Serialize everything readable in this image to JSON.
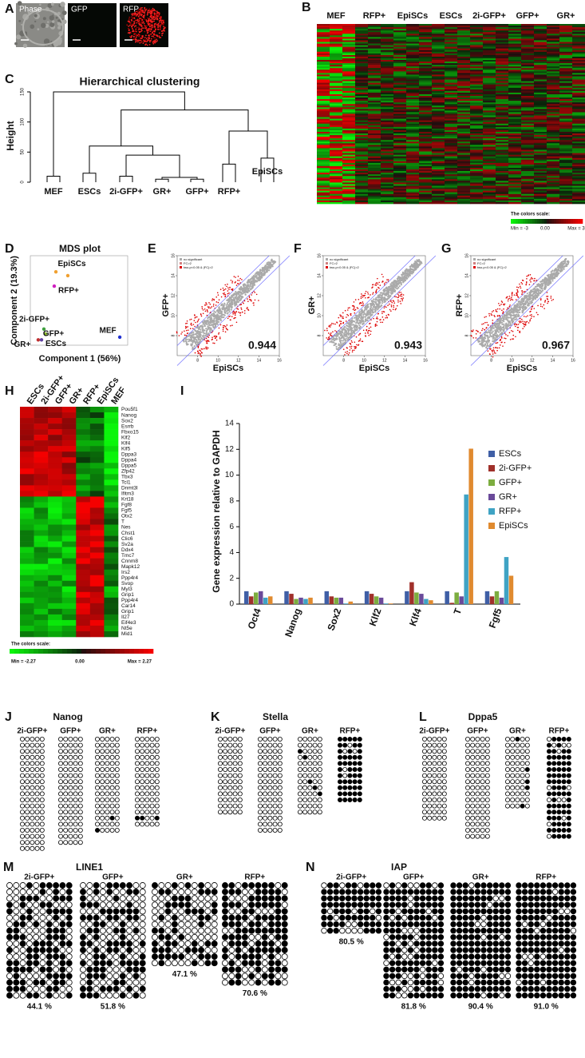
{
  "chart_data": [
    {
      "type": "image",
      "panel": "A",
      "labels": [
        "Phase",
        "GFP",
        "RFP"
      ]
    },
    {
      "type": "heatmap",
      "panel": "B",
      "categories": [
        "MEF",
        "RFP+",
        "EpiSCs",
        "ESCs",
        "2i-GFP+",
        "GFP+",
        "GR+"
      ],
      "scale_title": "The colors scale:",
      "scale_labels": [
        "Min = -3",
        "0.00",
        "Max = 3"
      ]
    },
    {
      "type": "dendrogram",
      "panel": "C",
      "title": "Hierarchical clustering",
      "ylabel": "Height",
      "ylim": [
        0,
        150
      ],
      "yticks": [
        0,
        50,
        100,
        150
      ],
      "leaves": [
        "MEF",
        "ESCs",
        "2i-GFP+",
        "GR+",
        "GFP+",
        "RFP+",
        "EpiSCs"
      ],
      "leaf_heights": [
        10,
        15,
        10,
        5,
        5,
        30,
        40
      ],
      "merges": [
        {
          "children": [
            3,
            4
          ],
          "height": 8
        },
        {
          "children": [
            2,
            7
          ],
          "height": 45
        },
        {
          "children": [
            1,
            8
          ],
          "height": 60
        },
        {
          "children": [
            5,
            6
          ],
          "height": 85
        },
        {
          "children": [
            9,
            10
          ],
          "height": 120
        },
        {
          "children": [
            0,
            11
          ],
          "height": 150
        }
      ]
    },
    {
      "type": "scatter",
      "panel": "D",
      "title": "MDS plot",
      "xlabel": "Component 1 (56%)",
      "ylabel": "Component 2 (19.3%)",
      "xlim": [
        -40,
        120
      ],
      "ylim": [
        -40,
        60
      ],
      "series": [
        {
          "name": "EpiSCs",
          "color": "#f0a030",
          "x": [
            2,
            21.6
          ],
          "values": [
            42,
            37.7
          ]
        },
        {
          "name": "RFP+",
          "color": "#d020c0",
          "x": [
            -0.7
          ],
          "values": [
            26
          ]
        },
        {
          "name": "2i-GFP+",
          "color": "#40a040",
          "x": [
            -17.7
          ],
          "values": [
            -22
          ]
        },
        {
          "name": "GFP+",
          "color": "#90c030",
          "x": [
            -15
          ],
          "values": [
            -27.5
          ]
        },
        {
          "name": "GR+",
          "color": "#c03030",
          "x": [
            -27
          ],
          "values": [
            -34
          ]
        },
        {
          "name": "ESCs",
          "color": "#6040a0",
          "x": [
            -21.6
          ],
          "values": [
            -34
          ]
        },
        {
          "name": "MEF",
          "color": "#2030d0",
          "x": [
            107
          ],
          "values": [
            -31
          ]
        }
      ]
    },
    {
      "type": "correlation",
      "panel": "E",
      "xlabel": "EpiSCs",
      "ylabel": "GFP+",
      "annotation": 0.944,
      "legend": [
        "no significant",
        "FC>2",
        "two-p<0.05 & |FC|>2"
      ],
      "xlim": [
        6,
        16
      ],
      "ylim": [
        6,
        16
      ],
      "xticks": [
        8,
        10,
        12,
        14,
        16
      ],
      "yticks": [
        8,
        10,
        12,
        14,
        16
      ]
    },
    {
      "type": "correlation",
      "panel": "F",
      "xlabel": "EpiSCs",
      "ylabel": "GR+",
      "annotation": 0.943,
      "legend": [
        "no significant",
        "FC>2",
        "two-p<0.05 & |FC|>2"
      ],
      "xlim": [
        6,
        16
      ],
      "ylim": [
        6,
        16
      ],
      "xticks": [
        8,
        10,
        12,
        14,
        16
      ],
      "yticks": [
        8,
        10,
        12,
        14,
        16
      ]
    },
    {
      "type": "correlation",
      "panel": "G",
      "xlabel": "EpiSCs",
      "ylabel": "RFP+",
      "annotation": 0.967,
      "legend": [
        "no significant",
        "FC>2",
        "two-p<0.05 & |FC|>2"
      ],
      "xlim": [
        6,
        16
      ],
      "ylim": [
        6,
        16
      ],
      "xticks": [
        8,
        10,
        12,
        14,
        16
      ],
      "yticks": [
        8,
        10,
        12,
        14,
        16
      ]
    },
    {
      "type": "heatmap",
      "panel": "H",
      "categories": [
        "ESCs",
        "2i-GFP+",
        "GFP+",
        "GR+",
        "RFP+",
        "EpiSCs",
        "MEF"
      ],
      "rows": [
        "Pou5f1",
        "Nanog",
        "Sox2",
        "Esrrb",
        "Fbxo15",
        "Klf2",
        "Klf4",
        "Klf5",
        "Dppa3",
        "Dppa4",
        "Dppa5",
        "Zfp42",
        "Tbx3",
        "Tcl1",
        "Dnmt3l",
        "Ifitm3",
        "Krt18",
        "Fgf8",
        "Fgf5",
        "Otx2",
        "T",
        "Nes",
        "Chst1",
        "Clic6",
        "Sv2a",
        "Ddx4",
        "Tmc7",
        "Cnnm8",
        "Mapk12",
        "Irs2",
        "Ppp4r4",
        "Svop",
        "Myl3",
        "Grip1",
        "Ppp4r4",
        "Car14",
        "Grip1",
        "Il27",
        "Eif4e3",
        "Nt5e",
        "Mid1"
      ],
      "scale_title": "The colors scale:",
      "scale_labels": [
        "Min = -2.27",
        "0.00",
        "Max = 2.27"
      ]
    },
    {
      "type": "bar",
      "panel": "I",
      "ylabel": "Gene expression relative to GAPDH",
      "categories": [
        "Oct4",
        "Nanog",
        "Sox2",
        "Klf2",
        "Klf4",
        "T",
        "Fgf5"
      ],
      "ylim": [
        0,
        14
      ],
      "yticks": [
        0,
        2,
        4,
        6,
        8,
        10,
        12,
        14
      ],
      "series": [
        {
          "name": "ESCs",
          "color": "#3f5fa6",
          "values": [
            1.0,
            1.0,
            1.0,
            1.0,
            1.0,
            1.0,
            1.0
          ]
        },
        {
          "name": "2i-GFP+",
          "color": "#a0302a",
          "values": [
            0.6,
            0.8,
            0.6,
            0.8,
            1.7,
            0.1,
            0.6
          ]
        },
        {
          "name": "GFP+",
          "color": "#7cad3f",
          "values": [
            0.9,
            0.4,
            0.5,
            0.6,
            0.9,
            0.9,
            1.0
          ]
        },
        {
          "name": "GR+",
          "color": "#6a4a9a",
          "values": [
            1.0,
            0.5,
            0.5,
            0.5,
            0.8,
            0.6,
            0.5
          ]
        },
        {
          "name": "RFP+",
          "color": "#3fa3c4",
          "values": [
            0.5,
            0.4,
            0.05,
            0.05,
            0.4,
            8.5,
            3.65
          ]
        },
        {
          "name": "EpiSCs",
          "color": "#e08a2f",
          "values": [
            0.6,
            0.5,
            0.2,
            0.05,
            0.3,
            12.05,
            2.2
          ]
        }
      ]
    },
    {
      "type": "methylation",
      "panel": "J",
      "title": "Nanog",
      "groups": [
        {
          "name": "2i-GFP+"
        },
        {
          "name": "GFP+"
        },
        {
          "name": "GR+"
        },
        {
          "name": "RFP+"
        }
      ]
    },
    {
      "type": "methylation",
      "panel": "K",
      "title": "Stella",
      "groups": [
        {
          "name": "2i-GFP+"
        },
        {
          "name": "GFP+"
        },
        {
          "name": "GR+"
        },
        {
          "name": "RFP+"
        }
      ]
    },
    {
      "type": "methylation",
      "panel": "L",
      "title": "Dppa5",
      "groups": [
        {
          "name": "2i-GFP+"
        },
        {
          "name": "GFP+"
        },
        {
          "name": "GR+"
        },
        {
          "name": "RFP+"
        }
      ]
    },
    {
      "type": "methylation",
      "panel": "M",
      "title": "LINE1",
      "groups": [
        {
          "name": "2i-GFP+",
          "percent": "44.1 %"
        },
        {
          "name": "GFP+",
          "percent": "51.8 %"
        },
        {
          "name": "GR+",
          "percent": "47.1 %"
        },
        {
          "name": "RFP+",
          "percent": "70.6 %"
        }
      ]
    },
    {
      "type": "methylation",
      "panel": "N",
      "title": "IAP",
      "groups": [
        {
          "name": "2i-GFP+",
          "percent": "80.5 %"
        },
        {
          "name": "GFP+",
          "percent": "81.8 %"
        },
        {
          "name": "GR+",
          "percent": "90.4 %"
        },
        {
          "name": "RFP+",
          "percent": "91.0 %"
        }
      ]
    }
  ]
}
